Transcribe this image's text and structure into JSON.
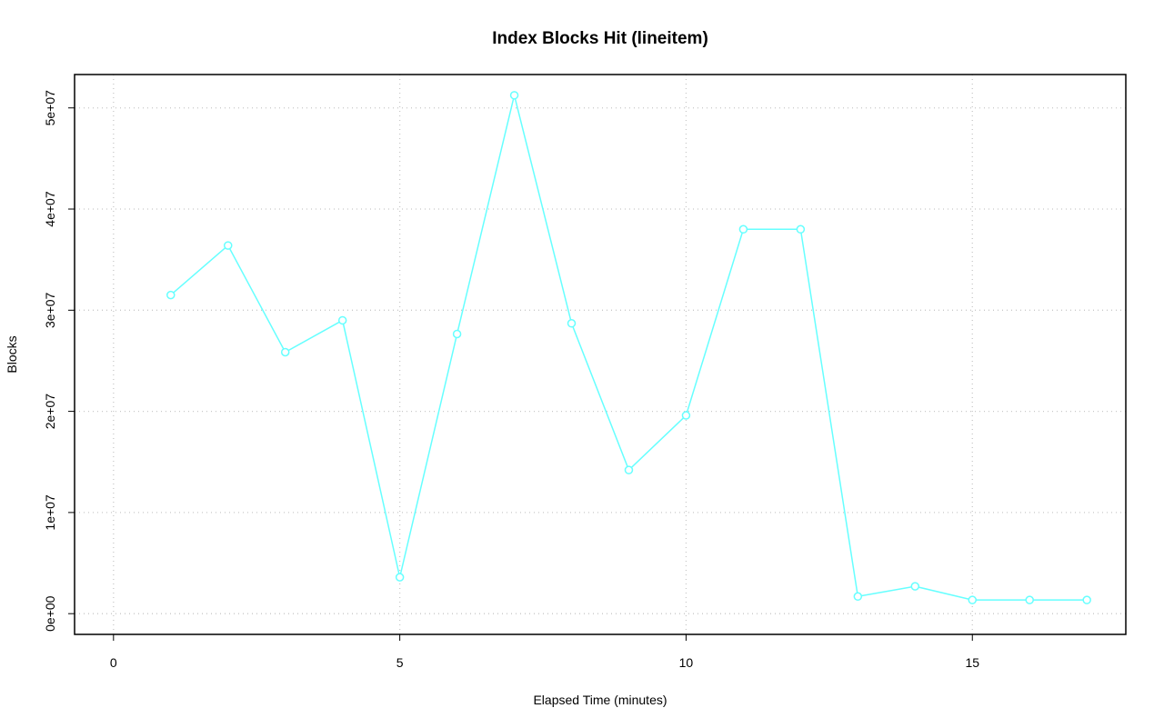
{
  "chart_data": {
    "type": "line",
    "title": "Index Blocks Hit (lineitem)",
    "x_label": "Elapsed Time (minutes)",
    "y_label": "Blocks",
    "x": [
      1,
      2,
      3,
      4,
      5,
      6,
      7,
      8,
      9,
      10,
      11,
      12,
      13,
      14,
      15,
      16,
      17
    ],
    "series": [
      {
        "color": "#66ffff",
        "values": [
          31500000,
          36400000,
          25850000,
          29000000,
          3600000,
          27650000,
          51250000,
          28700000,
          14200000,
          19600000,
          38000000,
          38000000,
          1700000,
          2700000,
          1350000,
          1350000,
          1350000
        ]
      }
    ],
    "xlim": [
      -0.68,
      17.68
    ],
    "xticks": [
      0,
      5,
      10,
      15
    ],
    "ylim": [
      -2050000,
      53300000
    ],
    "yticks": [
      {
        "value": 0,
        "label": "0e+00"
      },
      {
        "value": 10000000,
        "label": "1e+07"
      },
      {
        "value": 20000000,
        "label": "2e+07"
      },
      {
        "value": 30000000,
        "label": "3e+07"
      },
      {
        "value": 40000000,
        "label": "4e+07"
      },
      {
        "value": 50000000,
        "label": "5e+07"
      }
    ],
    "grid": true
  }
}
